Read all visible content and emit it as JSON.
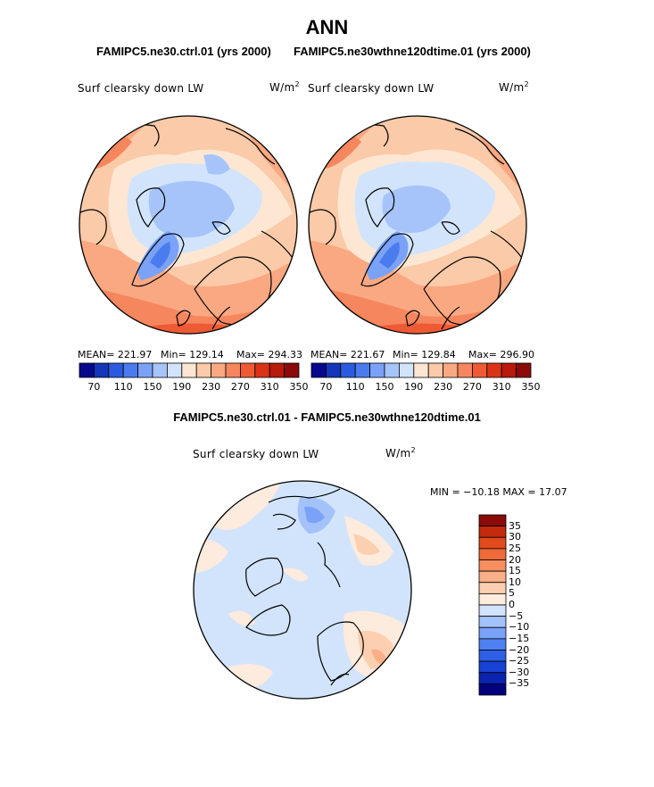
{
  "title": "ANN",
  "subtitles": {
    "left": "FAMIPC5.ne30.ctrl.01 (yrs 2000)",
    "right": "FAMIPC5.ne30wthne120dtime.01 (yrs 2000)"
  },
  "panel_label": "Surf clearsky down LW",
  "unit_base": "W/m",
  "unit_exp": "2",
  "colors": {
    "abs_scale": [
      "#08088c",
      "#1436b8",
      "#2a5ae0",
      "#4a7cf0",
      "#7aa2f6",
      "#a6c4fa",
      "#d2e4fc",
      "#fde7d3",
      "#fbcaa8",
      "#f9a882",
      "#f6865e",
      "#ee5a34",
      "#d93418",
      "#b81a0c",
      "#8b0a0a"
    ],
    "diff_scale": [
      "#00007f",
      "#0a24b0",
      "#1842d4",
      "#2e5fe6",
      "#4e80f2",
      "#7aa2f6",
      "#a4c2fa",
      "#d2e4fc",
      "#fdebdd",
      "#fbcfb0",
      "#f9b088",
      "#f68e60",
      "#ee6a3a",
      "#e04a1c",
      "#c42a0c",
      "#8b0a0a"
    ],
    "land_line": "#000000"
  },
  "chart_data": [
    {
      "type": "heatmap",
      "projection": "north-polar-stereographic",
      "title": "FAMIPC5.ne30.ctrl.01 (yrs 2000)",
      "variable": "Surf clearsky down LW",
      "units": "W/m2",
      "stats": {
        "mean": "MEAN= 221.97",
        "min": "Min= 129.14",
        "max": "Max= 294.33"
      },
      "colorbar_ticks": [
        "70",
        "110",
        "150",
        "190",
        "230",
        "270",
        "310",
        "350"
      ],
      "levels": [
        70,
        90,
        110,
        130,
        150,
        170,
        190,
        210,
        230,
        250,
        270,
        290,
        310,
        330,
        350
      ]
    },
    {
      "type": "heatmap",
      "projection": "north-polar-stereographic",
      "title": "FAMIPC5.ne30wthne120dtime.01 (yrs 2000)",
      "variable": "Surf clearsky down LW",
      "units": "W/m2",
      "stats": {
        "mean": "MEAN= 221.67",
        "min": "Min= 129.84",
        "max": "Max= 296.90"
      },
      "colorbar_ticks": [
        "70",
        "110",
        "150",
        "190",
        "230",
        "270",
        "310",
        "350"
      ],
      "levels": [
        70,
        90,
        110,
        130,
        150,
        170,
        190,
        210,
        230,
        250,
        270,
        290,
        310,
        330,
        350
      ]
    },
    {
      "type": "heatmap",
      "projection": "north-polar-stereographic",
      "title": "FAMIPC5.ne30.ctrl.01 - FAMIPC5.ne30wthne120dtime.01",
      "variable": "Surf clearsky down LW",
      "units": "W/m2",
      "stats": {
        "minmax": "MIN = −10.18 MAX =  17.07"
      },
      "colorbar_ticks": [
        "35",
        "30",
        "25",
        "20",
        "15",
        "10",
        "5",
        "0",
        "−5",
        "−10",
        "−15",
        "−20",
        "−25",
        "−30",
        "−35"
      ],
      "levels": [
        -35,
        -30,
        -25,
        -20,
        -15,
        -10,
        -5,
        0,
        5,
        10,
        15,
        20,
        25,
        30,
        35
      ]
    }
  ]
}
